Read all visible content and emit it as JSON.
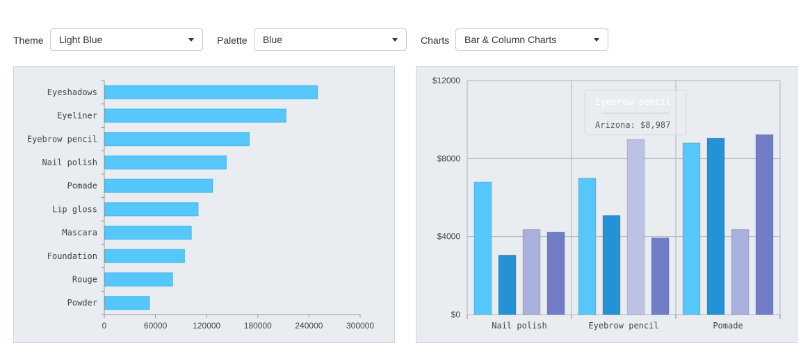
{
  "controls": {
    "theme": {
      "label": "Theme",
      "value": "Light Blue"
    },
    "palette": {
      "label": "Palette",
      "value": "Blue"
    },
    "charts": {
      "label": "Charts",
      "value": "Bar & Column Charts"
    }
  },
  "colors": {
    "panel_bg": "#e9edf1",
    "s1": "#56c7fa",
    "s2": "#2492d6",
    "s3": "#aab0dd",
    "s4": "#727dc7",
    "s3_hover": "#bcc2e3"
  },
  "chart_data": [
    {
      "type": "bar",
      "orientation": "horizontal",
      "categories": [
        "Eyeshadows",
        "Eyeliner",
        "Eyebrow pencil",
        "Nail polish",
        "Pomade",
        "Lip gloss",
        "Mascara",
        "Foundation",
        "Rouge",
        "Powder"
      ],
      "values": [
        250000,
        213000,
        170000,
        143000,
        127000,
        110000,
        102000,
        94000,
        80000,
        53000
      ],
      "xlim": [
        0,
        300000
      ],
      "xticks": [
        "0",
        "60000",
        "120000",
        "180000",
        "240000",
        "300000"
      ],
      "grid": false
    },
    {
      "type": "bar",
      "orientation": "vertical",
      "categories": [
        "Nail polish",
        "Eyebrow pencil",
        "Pomade"
      ],
      "series": [
        {
          "values": [
            6800,
            7000,
            8800
          ]
        },
        {
          "values": [
            3050,
            5080,
            9040
          ]
        },
        {
          "values": [
            4360,
            8987,
            4360
          ]
        },
        {
          "values": [
            4230,
            3930,
            9230
          ]
        }
      ],
      "ylim": [
        0,
        12000
      ],
      "yticks": [
        "$0",
        "$4000",
        "$8000",
        "$12000"
      ],
      "grid": true,
      "tooltip": {
        "title": "Eyebrow pencil",
        "text": "Arizona: $8,987",
        "category_index": 1,
        "series_index": 2
      }
    }
  ]
}
